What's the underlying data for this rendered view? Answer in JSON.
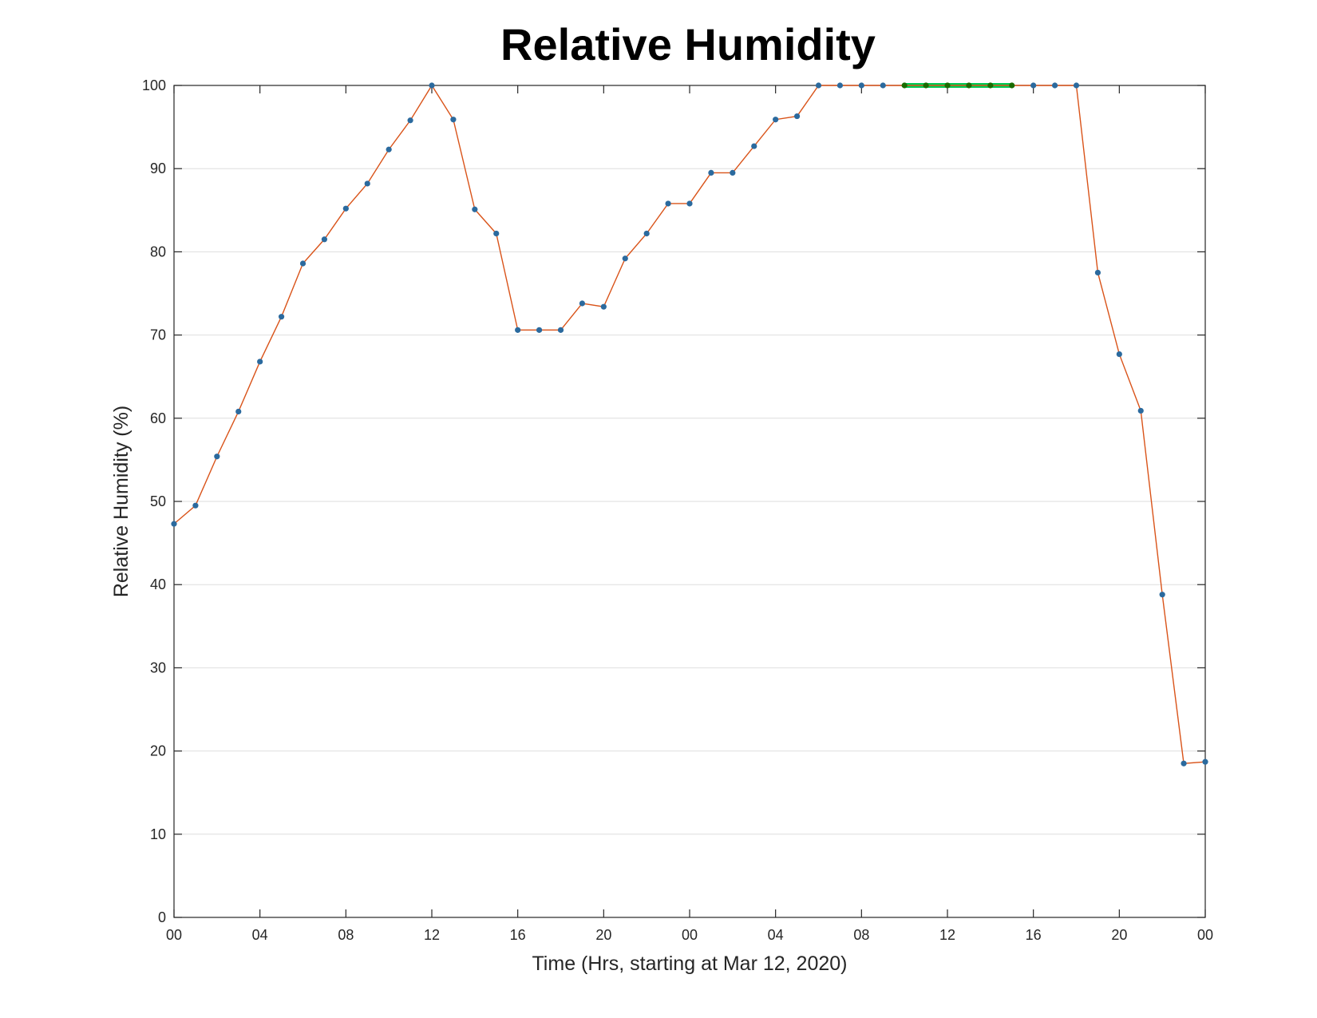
{
  "chart_data": {
    "type": "line",
    "title": "Relative Humidity",
    "xlabel": "Time (Hrs, starting at Mar 12, 2020)",
    "ylabel": "Relative Humidity (%)",
    "x_unit": "hours",
    "xlim": [
      0,
      48
    ],
    "ylim": [
      0,
      100
    ],
    "yticks": [
      0,
      10,
      20,
      30,
      40,
      50,
      60,
      70,
      80,
      90,
      100
    ],
    "xticks": [
      0,
      4,
      8,
      12,
      16,
      20,
      24,
      28,
      32,
      36,
      40,
      44,
      48
    ],
    "xtick_labels": [
      "00",
      "04",
      "08",
      "12",
      "16",
      "20",
      "00",
      "04",
      "08",
      "12",
      "16",
      "20",
      "00"
    ],
    "grid": "horizontal",
    "x": [
      0,
      1,
      2,
      3,
      4,
      5,
      6,
      7,
      8,
      9,
      10,
      11,
      12,
      13,
      14,
      15,
      16,
      17,
      18,
      19,
      20,
      21,
      22,
      23,
      24,
      25,
      26,
      27,
      28,
      29,
      30,
      31,
      32,
      33,
      34,
      35,
      36,
      37,
      38,
      39,
      40,
      41,
      42,
      43,
      44,
      45,
      46,
      47,
      48
    ],
    "series": [
      {
        "color": "#d95319",
        "marker_color": "#2b6a9e",
        "values": [
          47.3,
          49.5,
          55.4,
          60.8,
          66.8,
          72.2,
          78.6,
          81.5,
          85.2,
          88.2,
          92.3,
          95.8,
          100,
          95.9,
          85.1,
          82.2,
          70.6,
          70.6,
          70.6,
          73.8,
          73.4,
          79.2,
          82.2,
          85.8,
          85.8,
          89.5,
          89.5,
          92.7,
          95.9,
          96.3,
          100,
          100,
          100,
          100,
          100,
          100,
          100,
          100,
          100,
          100,
          100,
          100,
          100,
          77.5,
          67.7,
          60.9,
          38.8,
          18.5,
          18.7
        ]
      }
    ],
    "highlight": {
      "color": "#00c853",
      "marker_color": "#1a6b00",
      "x_range": [
        34,
        39
      ],
      "value": 100
    }
  }
}
